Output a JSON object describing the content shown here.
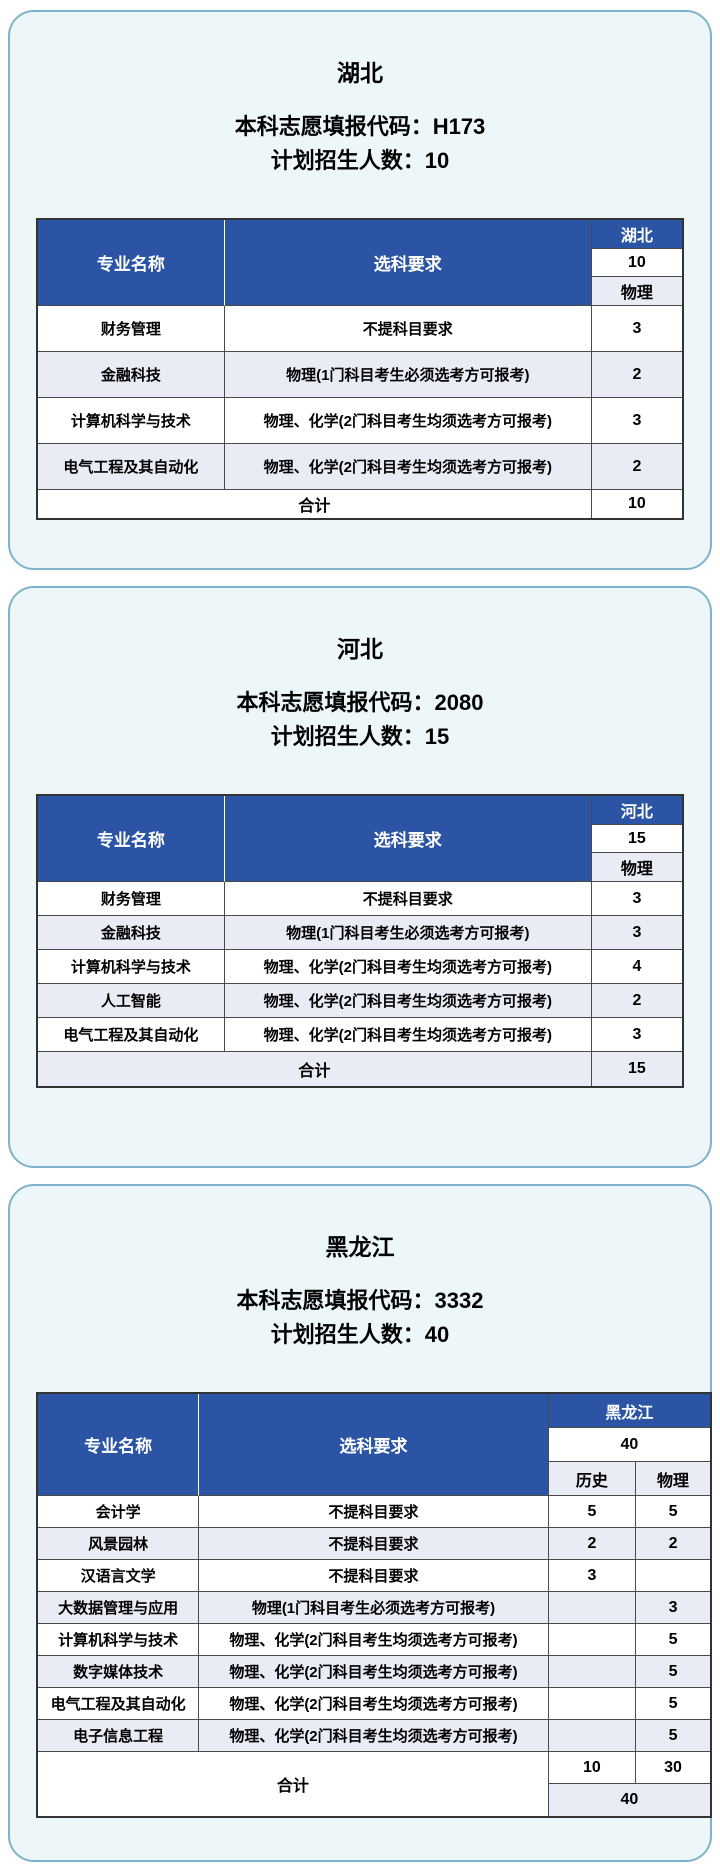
{
  "colors": {
    "header_blue": "#2b54a4",
    "stripe_lavender": "#e9ecf5",
    "card_background": "#edf7fa",
    "card_border": "#7fb3cc"
  },
  "cards": [
    {
      "province": "湖北",
      "code_label": "本科志愿填报代码：",
      "code_value": "H173",
      "plan_label": "计划招生人数：",
      "plan_value": "10",
      "table": {
        "major_header": "专业名称",
        "requirement_header": "选科要求",
        "province_label": "湖北",
        "total_count": "10",
        "subjects": [
          "物理"
        ],
        "rows": [
          {
            "major": "财务管理",
            "requirement": "不提科目要求",
            "counts": [
              "3"
            ]
          },
          {
            "major": "金融科技",
            "requirement": "物理(1门科目考生必须选考方可报考)",
            "counts": [
              "2"
            ]
          },
          {
            "major": "计算机科学与技术",
            "requirement": "物理、化学(2门科目考生均须选考方可报考)",
            "counts": [
              "3"
            ]
          },
          {
            "major": "电气工程及其自动化",
            "requirement": "物理、化学(2门科目考生均须选考方可报考)",
            "counts": [
              "2"
            ]
          }
        ],
        "total_label": "合计",
        "total_counts": [
          "10"
        ],
        "grand_total": null
      }
    },
    {
      "province": "河北",
      "code_label": "本科志愿填报代码：",
      "code_value": "2080",
      "plan_label": "计划招生人数：",
      "plan_value": "15",
      "table": {
        "major_header": "专业名称",
        "requirement_header": "选科要求",
        "province_label": "河北",
        "total_count": "15",
        "subjects": [
          "物理"
        ],
        "rows": [
          {
            "major": "财务管理",
            "requirement": "不提科目要求",
            "counts": [
              "3"
            ]
          },
          {
            "major": "金融科技",
            "requirement": "物理(1门科目考生必须选考方可报考)",
            "counts": [
              "3"
            ]
          },
          {
            "major": "计算机科学与技术",
            "requirement": "物理、化学(2门科目考生均须选考方可报考)",
            "counts": [
              "4"
            ]
          },
          {
            "major": "人工智能",
            "requirement": "物理、化学(2门科目考生均须选考方可报考)",
            "counts": [
              "2"
            ]
          },
          {
            "major": "电气工程及其自动化",
            "requirement": "物理、化学(2门科目考生均须选考方可报考)",
            "counts": [
              "3"
            ]
          }
        ],
        "total_label": "合计",
        "total_counts": [
          "15"
        ],
        "grand_total": null
      }
    },
    {
      "province": "黑龙江",
      "code_label": "本科志愿填报代码：",
      "code_value": "3332",
      "plan_label": "计划招生人数：",
      "plan_value": "40",
      "table": {
        "major_header": "专业名称",
        "requirement_header": "选科要求",
        "province_label": "黑龙江",
        "total_count": "40",
        "subjects": [
          "历史",
          "物理"
        ],
        "rows": [
          {
            "major": "会计学",
            "requirement": "不提科目要求",
            "counts": [
              "5",
              "5"
            ]
          },
          {
            "major": "风景园林",
            "requirement": "不提科目要求",
            "counts": [
              "2",
              "2"
            ]
          },
          {
            "major": "汉语言文学",
            "requirement": "不提科目要求",
            "counts": [
              "3",
              ""
            ]
          },
          {
            "major": "大数据管理与应用",
            "requirement": "物理(1门科目考生必须选考方可报考)",
            "counts": [
              "",
              "3"
            ]
          },
          {
            "major": "计算机科学与技术",
            "requirement": "物理、化学(2门科目考生均须选考方可报考)",
            "counts": [
              "",
              "5"
            ]
          },
          {
            "major": "数字媒体技术",
            "requirement": "物理、化学(2门科目考生均须选考方可报考)",
            "counts": [
              "",
              "5"
            ]
          },
          {
            "major": "电气工程及其自动化",
            "requirement": "物理、化学(2门科目考生均须选考方可报考)",
            "counts": [
              "",
              "5"
            ]
          },
          {
            "major": "电子信息工程",
            "requirement": "物理、化学(2门科目考生均须选考方可报考)",
            "counts": [
              "",
              "5"
            ]
          }
        ],
        "total_label": "合计",
        "total_counts": [
          "10",
          "30"
        ],
        "grand_total": "40"
      }
    }
  ]
}
